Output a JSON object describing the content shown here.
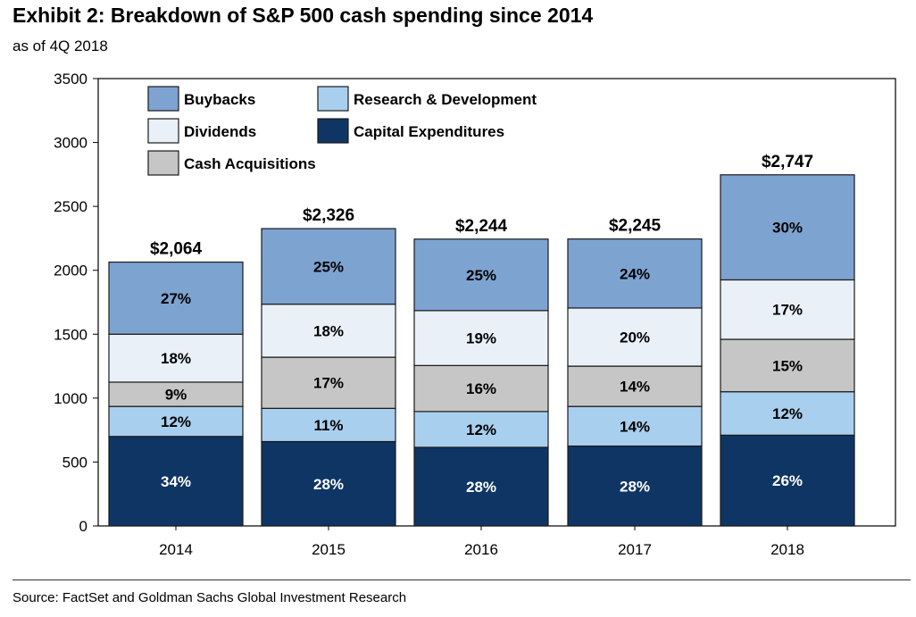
{
  "title": "Exhibit 2: Breakdown of S&P 500 cash spending since 2014",
  "subtitle": "as of 4Q 2018",
  "source": "Source: FactSet and Goldman Sachs Global Investment Research",
  "colors": {
    "Capital Expenditures": "#0e3563",
    "Research & Development": "#a9cfee",
    "Cash Acquisitions": "#c6c6c6",
    "Dividends": "#e9f0f8",
    "Buybacks": "#7da3d1"
  },
  "chart_data": {
    "type": "bar",
    "stacked": true,
    "categories": [
      "2014",
      "2015",
      "2016",
      "2017",
      "2018"
    ],
    "totals": [
      2064,
      2326,
      2244,
      2245,
      2747
    ],
    "total_labels": [
      "$2,064",
      "$2,326",
      "$2,244",
      "$2,245",
      "$2,747"
    ],
    "series": [
      {
        "name": "Capital Expenditures",
        "values": [
          700,
          660,
          615,
          625,
          710
        ],
        "labels": [
          "34%",
          "28%",
          "28%",
          "28%",
          "26%"
        ]
      },
      {
        "name": "Research & Development",
        "values": [
          235,
          260,
          280,
          310,
          340
        ],
        "labels": [
          "12%",
          "11%",
          "12%",
          "14%",
          "12%"
        ]
      },
      {
        "name": "Cash Acquisitions",
        "values": [
          190,
          400,
          360,
          315,
          410
        ],
        "labels": [
          "9%",
          "17%",
          "16%",
          "14%",
          "15%"
        ]
      },
      {
        "name": "Dividends",
        "values": [
          375,
          415,
          430,
          455,
          465
        ],
        "labels": [
          "18%",
          "18%",
          "19%",
          "20%",
          "17%"
        ]
      },
      {
        "name": "Buybacks",
        "values": [
          564,
          591,
          559,
          540,
          822
        ],
        "labels": [
          "27%",
          "25%",
          "25%",
          "24%",
          "30%"
        ]
      }
    ],
    "legend": {
      "placement": "top-left",
      "order": [
        "Buybacks",
        "Research & Development",
        "Dividends",
        "Capital Expenditures",
        "Cash Acquisitions"
      ]
    },
    "xlabel": "",
    "ylabel": "",
    "ylim": [
      0,
      3500
    ],
    "yticks": [
      0,
      500,
      1000,
      1500,
      2000,
      2500,
      3000,
      3500
    ],
    "grid": false
  }
}
